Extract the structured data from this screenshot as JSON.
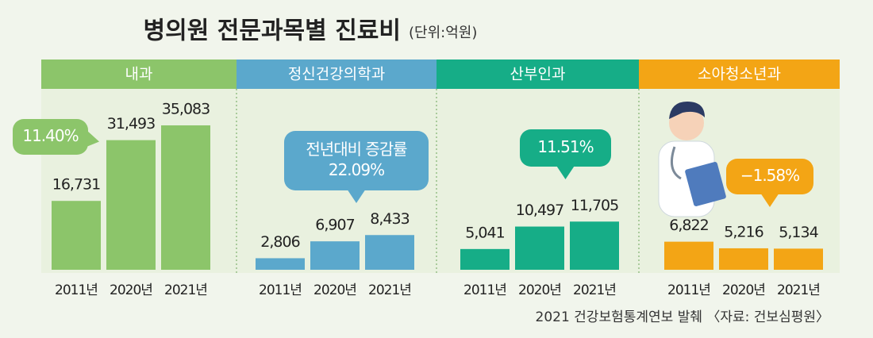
{
  "title": "병의원 전문과목별 진료비",
  "unit": "(단위:억원)",
  "source": "2021 건강보험통계연보 발췌 〈자료: 건보심평원〉",
  "chart_data": [
    {
      "type": "bar",
      "title": "내과",
      "color": "#8cc56a",
      "categories": [
        "2011년",
        "2020년",
        "2021년"
      ],
      "values": [
        16731,
        31493,
        35083
      ],
      "value_labels": [
        "16,731",
        "31,493",
        "35,083"
      ],
      "annotations": [
        "11.40%"
      ]
    },
    {
      "type": "bar",
      "title": "정신건강의학과",
      "color": "#5ba8cc",
      "categories": [
        "2011년",
        "2020년",
        "2021년"
      ],
      "values": [
        2806,
        6907,
        8433
      ],
      "value_labels": [
        "2,806",
        "6,907",
        "8,433"
      ],
      "annotations": [
        "전년대비 증감률",
        "22.09%"
      ]
    },
    {
      "type": "bar",
      "title": "산부인과",
      "color": "#16ad87",
      "categories": [
        "2011년",
        "2020년",
        "2021년"
      ],
      "values": [
        5041,
        10497,
        11705
      ],
      "value_labels": [
        "5,041",
        "10,497",
        "11,705"
      ],
      "annotations": [
        "11.51%"
      ]
    },
    {
      "type": "bar",
      "title": "소아청소년과",
      "color": "#f3a515",
      "categories": [
        "2011년",
        "2020년",
        "2021년"
      ],
      "values": [
        6822,
        5216,
        5134
      ],
      "value_labels": [
        "6,822",
        "5,216",
        "5,134"
      ],
      "annotations": [
        "−1.58%"
      ]
    }
  ]
}
